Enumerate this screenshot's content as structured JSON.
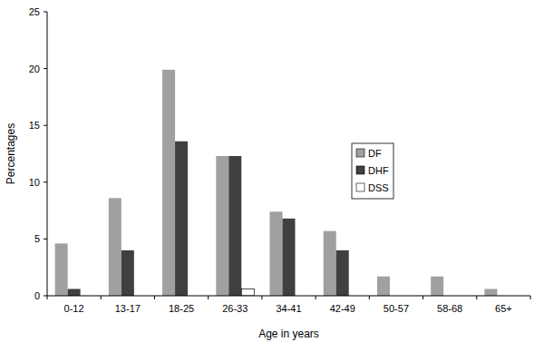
{
  "chart_data": {
    "type": "bar",
    "x_label": "Age in years",
    "y_label": "Percentages",
    "categories": [
      "0-12",
      "13-17",
      "18-25",
      "26-33",
      "34-41",
      "42-49",
      "50-57",
      "58-68",
      "65+"
    ],
    "series": [
      {
        "name": "DF",
        "color": "#a0a0a0",
        "values": [
          4.6,
          8.6,
          19.9,
          12.3,
          7.4,
          5.7,
          1.7,
          1.7,
          0.6
        ]
      },
      {
        "name": "DHF",
        "color": "#404040",
        "values": [
          0.6,
          4.0,
          13.6,
          12.3,
          6.8,
          4.0,
          0,
          0,
          0
        ]
      },
      {
        "name": "DSS",
        "color": "#ffffff",
        "values": [
          0,
          0,
          0,
          0.6,
          0,
          0,
          0,
          0,
          0
        ]
      }
    ],
    "ylim": [
      0,
      25
    ],
    "yticks": [
      0,
      5,
      10,
      15,
      20,
      25
    ],
    "grid": false,
    "legend": "right"
  }
}
